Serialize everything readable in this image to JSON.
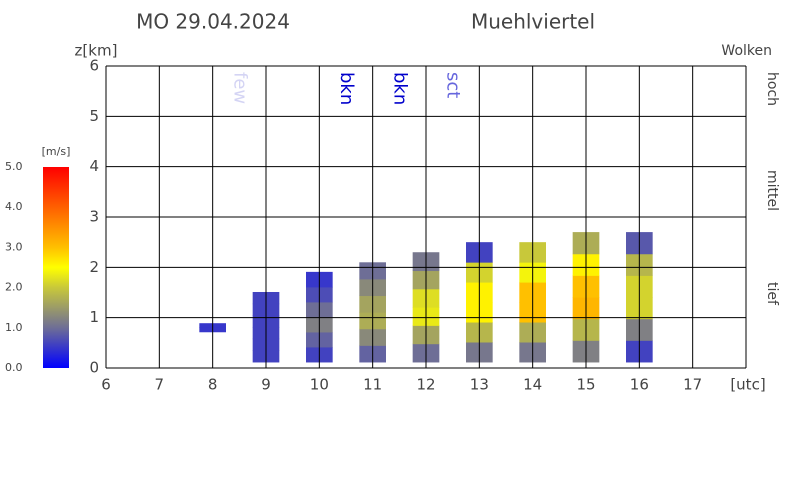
{
  "chart_data": {
    "type": "thermal-bars",
    "title": "MO 29.04.2024",
    "subtitle": "Muehlviertel",
    "ylabel": "z[km]",
    "xlabel": "[utc]",
    "xlim": [
      6,
      18
    ],
    "xticks": [
      6,
      7,
      8,
      9,
      10,
      11,
      12,
      13,
      14,
      15,
      16,
      17
    ],
    "ylim": [
      0,
      6
    ],
    "yticks": [
      0,
      1,
      2,
      3,
      4,
      5,
      6
    ],
    "grid": true,
    "cloud_title": "Wolken",
    "levels": [
      "hoch",
      "mittel",
      "tief"
    ],
    "clouds": {
      "x": [
        8.5,
        10.5,
        11.5,
        12.5
      ],
      "labels": [
        "few",
        "bkn",
        "bkn",
        "sct"
      ],
      "colors": [
        "#d4d4f4",
        "#0000cc",
        "#0000cc",
        "#6666dd"
      ]
    },
    "colorbar": {
      "label": "[m/s]",
      "lim": [
        0,
        5
      ],
      "ticks": [
        {
          "value": 0,
          "label": "0.0"
        },
        {
          "value": 1,
          "label": "1.0"
        },
        {
          "value": 2,
          "label": "2.0"
        },
        {
          "value": 3,
          "label": "3.0"
        },
        {
          "value": 4,
          "label": "4.0"
        },
        {
          "value": 5,
          "label": "5.0"
        }
      ],
      "colorscale": [
        {
          "value": 0,
          "color": "#0000ff"
        },
        {
          "value": 1,
          "color": "#6e6e96"
        },
        {
          "value": 2,
          "color": "#c8c83a"
        },
        {
          "value": 2.5,
          "color": "#ffff00"
        },
        {
          "value": 3,
          "color": "#ffc000"
        },
        {
          "value": 4,
          "color": "#ff6000"
        },
        {
          "value": 5,
          "color": "#ff0000"
        }
      ]
    },
    "bars": [
      {
        "x": 8,
        "bottom": 0.72,
        "top": 0.89,
        "speeds": [
          0.5,
          0.5
        ]
      },
      {
        "x": 9,
        "bottom": 0.12,
        "top": 1.51,
        "speeds": [
          0.6,
          0.6,
          0.6,
          0.6,
          0.6,
          0.6
        ]
      },
      {
        "x": 10,
        "bottom": 0.12,
        "top": 1.91,
        "speeds": [
          0.6,
          0.9,
          1.2,
          1.0,
          0.7,
          0.5
        ]
      },
      {
        "x": 11,
        "bottom": 0.12,
        "top": 2.1,
        "speeds": [
          0.9,
          1.3,
          1.7,
          1.6,
          1.3,
          1.0
        ]
      },
      {
        "x": 12,
        "bottom": 0.12,
        "top": 2.3,
        "speeds": [
          1.0,
          1.6,
          2.3,
          2.2,
          1.6,
          1.1
        ]
      },
      {
        "x": 13,
        "bottom": 0.12,
        "top": 2.5,
        "speeds": [
          1.1,
          1.8,
          2.6,
          2.6,
          2.1,
          0.6
        ]
      },
      {
        "x": 14,
        "bottom": 0.12,
        "top": 2.5,
        "speeds": [
          1.1,
          1.7,
          3.0,
          3.0,
          2.4,
          2.0
        ]
      },
      {
        "x": 15,
        "bottom": 0.12,
        "top": 2.7,
        "speeds": [
          1.2,
          1.8,
          3.1,
          3.0,
          2.6,
          1.7
        ]
      },
      {
        "x": 16,
        "bottom": 0.12,
        "top": 2.7,
        "speeds": [
          0.6,
          1.2,
          2.1,
          2.1,
          1.8,
          0.8
        ]
      }
    ]
  }
}
